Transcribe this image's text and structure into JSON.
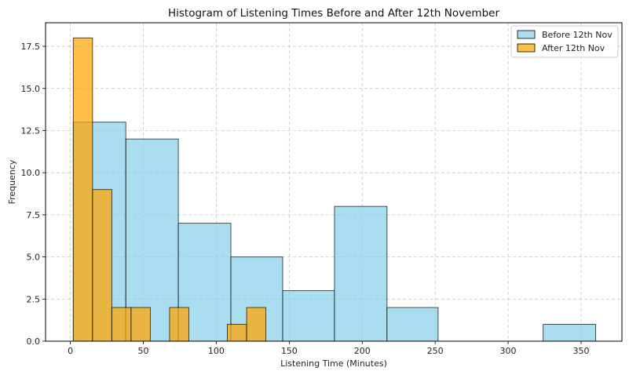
{
  "chart_data": {
    "type": "histogram",
    "title": "Histogram of Listening Times Before and After 12th November",
    "xlabel": "Listening Time (Minutes)",
    "ylabel": "Frequency",
    "xlim": [
      -17,
      378
    ],
    "ylim": [
      0,
      18.9
    ],
    "xticks": [
      0,
      50,
      100,
      150,
      200,
      250,
      300,
      350
    ],
    "xtick_labels": [
      "0",
      "50",
      "100",
      "150",
      "200",
      "250",
      "300",
      "350"
    ],
    "yticks": [
      0,
      2.5,
      5,
      7.5,
      10,
      12.5,
      15,
      17.5
    ],
    "ytick_labels": [
      "0.0",
      "2.5",
      "5.0",
      "7.5",
      "10.0",
      "12.5",
      "15.0",
      "17.5"
    ],
    "grid": true,
    "legend_position": "top-right",
    "series": [
      {
        "name": "Before 12th Nov",
        "color": "#87CEEB",
        "bin_edges": [
          2,
          38,
          74,
          110,
          145.5,
          181,
          217,
          252,
          288,
          324,
          360
        ],
        "counts": [
          13,
          12,
          7,
          5,
          3,
          8,
          2,
          0,
          0,
          1
        ]
      },
      {
        "name": "After 12th Nov",
        "color": "#FFA500",
        "bin_edges": [
          2,
          15.2,
          28.4,
          41.6,
          54.8,
          68,
          81.2,
          94.4,
          107.6,
          120.8,
          134
        ],
        "counts": [
          18,
          9,
          2,
          2,
          0,
          2,
          0,
          0,
          1,
          2
        ]
      }
    ]
  }
}
